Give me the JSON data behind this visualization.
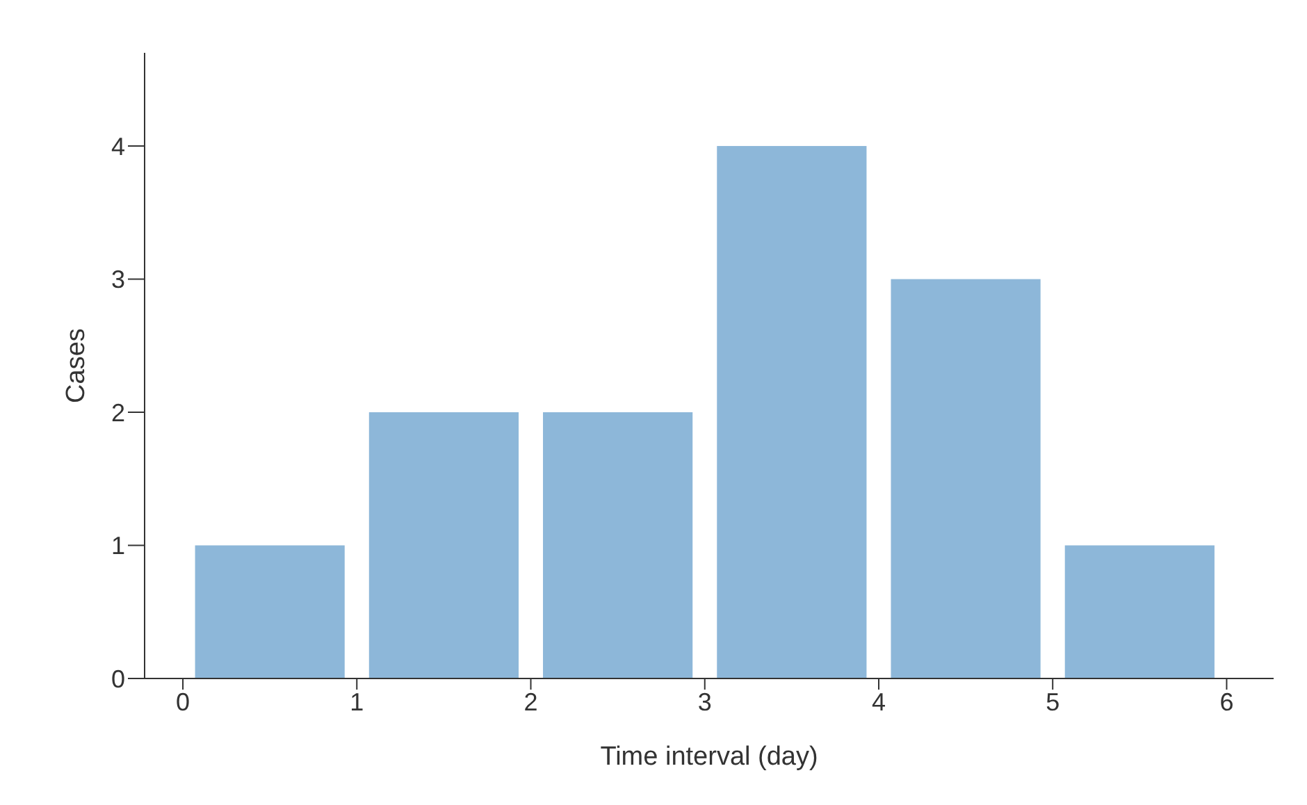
{
  "chart_data": {
    "type": "histogram",
    "xlabel": "Time interval (day)",
    "ylabel": "Cases",
    "bins": [
      0,
      1,
      2,
      3,
      4,
      5,
      6
    ],
    "values": [
      1,
      2,
      2,
      4,
      3,
      1
    ],
    "color": "#8db7d9",
    "xlim": [
      -0.22,
      6.27
    ],
    "xticks": [
      0,
      1,
      2,
      3,
      4,
      5,
      6
    ],
    "ylim": [
      0,
      4.7
    ],
    "yticks": [
      0,
      1,
      2,
      3,
      4
    ],
    "grid": false,
    "legend": false
  }
}
